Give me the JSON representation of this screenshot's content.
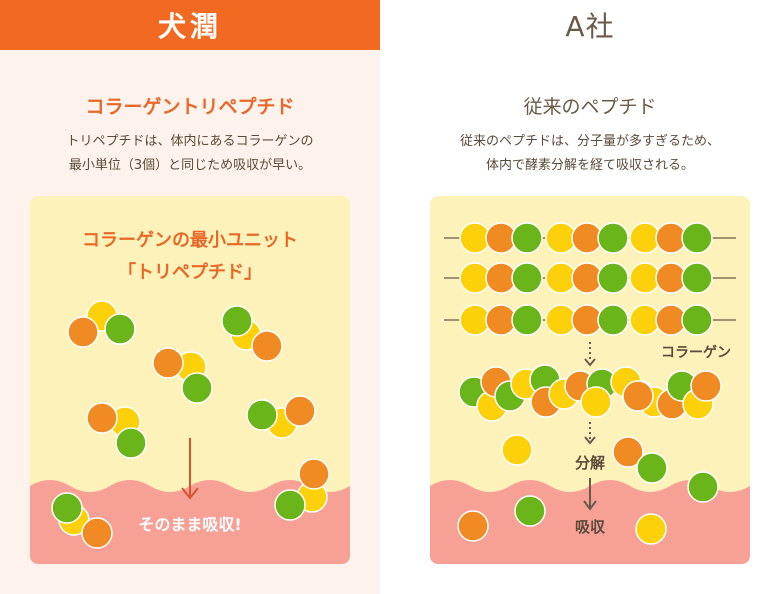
{
  "left": {
    "header": "犬潤",
    "subtitle": "コラーゲントリペプチド",
    "desc_line1": "トリペプチドは、体内にあるコラーゲンの",
    "desc_line2": "最小単位（3個）と同じため吸収が早い。",
    "panel_title_line1": "コラーゲンの最小ユニット",
    "panel_title_line2": "「トリペプチド」",
    "absorb_label": "そのまま吸収!"
  },
  "right": {
    "header": "A社",
    "subtitle": "従来のペプチド",
    "desc_line1": "従来のペプチドは、分子量が多すぎるため、",
    "desc_line2": "体内で酵素分解を経て吸収される。",
    "collagen_label": "コラーゲン",
    "decompose_label": "分解",
    "absorb_label": "吸収"
  },
  "colors": {
    "orange_header": "#f26a21",
    "ball_yellow": "#fcd109",
    "ball_orange": "#f08a22",
    "ball_green": "#6ab51a",
    "panel_bg": "#fdf2ba",
    "tissue": "#f7a196",
    "arrow": "#d9532e",
    "text_brown": "#5c4a3a"
  }
}
